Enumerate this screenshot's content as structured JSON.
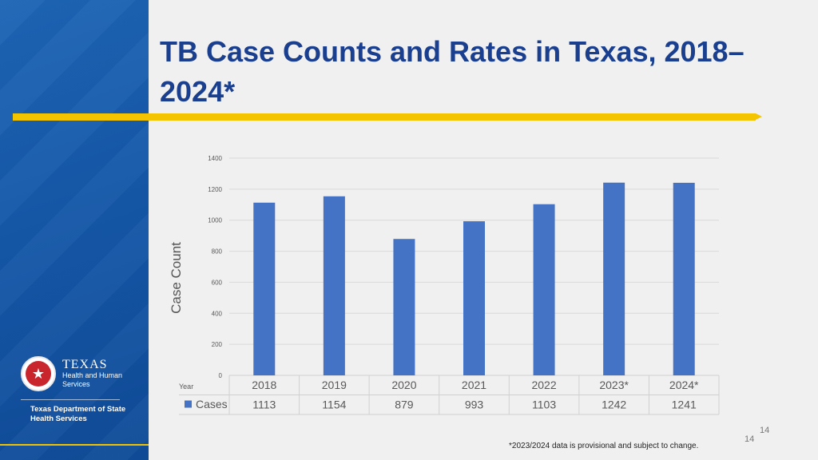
{
  "title": "TB Case Counts and Rates in Texas, 2018–2024*",
  "logo": {
    "texas": "TEXAS",
    "sub1": "Health and Human",
    "sub2": "Services",
    "star": "★",
    "dept_line1": "Texas Department of State",
    "dept_line2": "Health Services"
  },
  "page_number": "14",
  "footnote": "*2023/2024 data is provisional and subject to change.",
  "colors": {
    "bar": "#4472c4",
    "title": "#1a3f8f",
    "accent": "#f5c400",
    "sidebar": "#1558a8"
  },
  "chart_data": {
    "type": "bar",
    "ylabel": "Case Count",
    "xlabel": "",
    "ylim": [
      0,
      1400
    ],
    "yticks": [
      0,
      200,
      400,
      600,
      800,
      1000,
      1200,
      1400
    ],
    "grid": true,
    "table_row_labels": {
      "year": "Year",
      "series": "Cases"
    },
    "categories": [
      "2018",
      "2019",
      "2020",
      "2021",
      "2022",
      "2023*",
      "2024*"
    ],
    "series": [
      {
        "name": "Cases",
        "values": [
          1113,
          1154,
          879,
          993,
          1103,
          1242,
          1241
        ]
      }
    ]
  }
}
